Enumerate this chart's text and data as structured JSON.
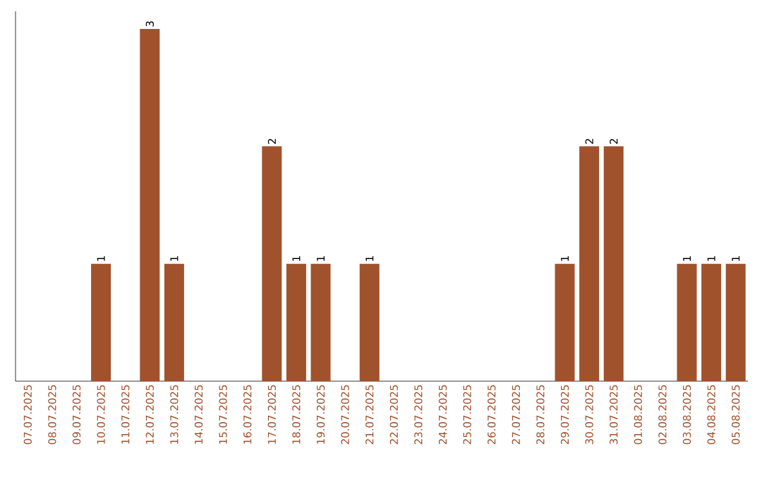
{
  "chart_data": {
    "type": "bar",
    "categories": [
      "07.07.2025",
      "08.07.2025",
      "09.07.2025",
      "10.07.2025",
      "11.07.2025",
      "12.07.2025",
      "13.07.2025",
      "14.07.2025",
      "15.07.2025",
      "16.07.2025",
      "17.07.2025",
      "18.07.2025",
      "19.07.2025",
      "20.07.2025",
      "21.07.2025",
      "22.07.2025",
      "23.07.2025",
      "24.07.2025",
      "25.07.2025",
      "26.07.2025",
      "27.07.2025",
      "28.07.2025",
      "29.07.2025",
      "30.07.2025",
      "31.07.2025",
      "01.08.2025",
      "02.08.2025",
      "03.08.2025",
      "04.08.2025",
      "05.08.2025"
    ],
    "values": [
      0,
      0,
      0,
      1,
      0,
      3,
      1,
      0,
      0,
      0,
      2,
      1,
      1,
      0,
      1,
      0,
      0,
      0,
      0,
      0,
      0,
      0,
      1,
      2,
      2,
      0,
      0,
      1,
      1,
      1
    ],
    "value_labels": [
      null,
      null,
      null,
      "1",
      null,
      "3",
      "1",
      null,
      null,
      null,
      "2",
      "1",
      "1",
      null,
      "1",
      null,
      null,
      null,
      null,
      null,
      null,
      null,
      "1",
      "2",
      "2",
      null,
      null,
      "1",
      "1",
      "1"
    ],
    "color": "#a0522d",
    "ylim": [
      0,
      3.15
    ],
    "tick_labels": "x"
  }
}
